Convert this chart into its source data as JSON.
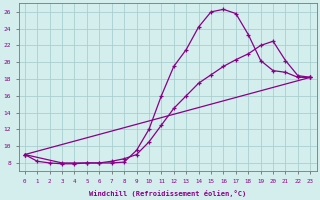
{
  "xlabel": "Windchill (Refroidissement éolien,°C)",
  "bg_color": "#d4eeee",
  "grid_color": "#aacece",
  "line_color": "#880088",
  "xlim": [
    -0.5,
    23.5
  ],
  "ylim": [
    7,
    27
  ],
  "xticks": [
    0,
    1,
    2,
    3,
    4,
    5,
    6,
    7,
    8,
    9,
    10,
    11,
    12,
    13,
    14,
    15,
    16,
    17,
    18,
    19,
    20,
    21,
    22,
    23
  ],
  "yticks": [
    8,
    10,
    12,
    14,
    16,
    18,
    20,
    22,
    24,
    26
  ],
  "line1_x": [
    0,
    1,
    2,
    3,
    4,
    5,
    6,
    7,
    8,
    9,
    10,
    11,
    12,
    13,
    14,
    15,
    16,
    17,
    18,
    19,
    20,
    21,
    22,
    23
  ],
  "line1_y": [
    9.0,
    8.2,
    8.0,
    7.9,
    7.9,
    8.0,
    8.0,
    8.0,
    8.1,
    9.5,
    12.0,
    16.0,
    19.5,
    21.5,
    24.2,
    26.0,
    26.3,
    25.8,
    23.3,
    20.2,
    19.0,
    18.8,
    18.2,
    18.2
  ],
  "line2_x": [
    0,
    3,
    4,
    5,
    6,
    7,
    8,
    9,
    10,
    11,
    12,
    13,
    14,
    15,
    16,
    17,
    18,
    19,
    20,
    21,
    22,
    23
  ],
  "line2_y": [
    9.0,
    8.0,
    8.0,
    8.0,
    8.0,
    8.2,
    8.5,
    9.0,
    10.5,
    12.5,
    14.5,
    16.0,
    17.5,
    18.5,
    19.5,
    20.3,
    21.0,
    22.0,
    22.5,
    20.2,
    18.4,
    18.2
  ],
  "line3_x": [
    0,
    23
  ],
  "line3_y": [
    9.0,
    18.2
  ]
}
